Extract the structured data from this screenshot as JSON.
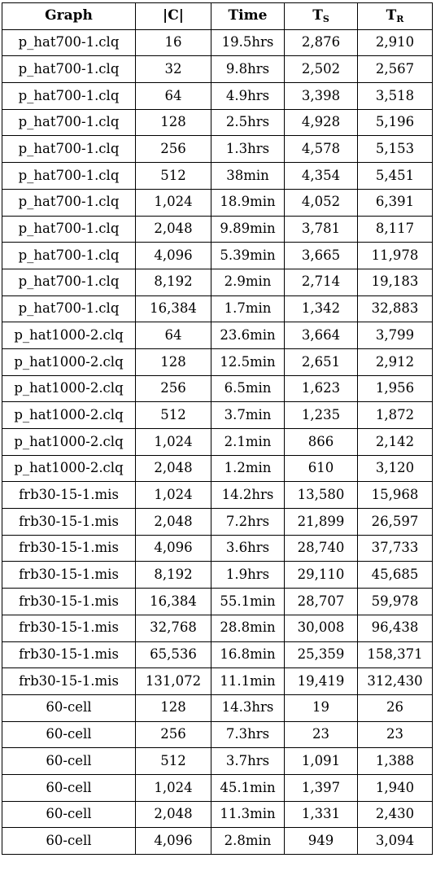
{
  "headers": {
    "graph": "Graph",
    "c": "|C|",
    "time": "Time",
    "ts_main": "T",
    "ts_sub": "S",
    "tr_main": "T",
    "tr_sub": "R"
  },
  "rows": [
    [
      "p_hat700-1.clq",
      "16",
      "19.5hrs",
      "2,876",
      "2,910"
    ],
    [
      "p_hat700-1.clq",
      "32",
      "9.8hrs",
      "2,502",
      "2,567"
    ],
    [
      "p_hat700-1.clq",
      "64",
      "4.9hrs",
      "3,398",
      "3,518"
    ],
    [
      "p_hat700-1.clq",
      "128",
      "2.5hrs",
      "4,928",
      "5,196"
    ],
    [
      "p_hat700-1.clq",
      "256",
      "1.3hrs",
      "4,578",
      "5,153"
    ],
    [
      "p_hat700-1.clq",
      "512",
      "38min",
      "4,354",
      "5,451"
    ],
    [
      "p_hat700-1.clq",
      "1,024",
      "18.9min",
      "4,052",
      "6,391"
    ],
    [
      "p_hat700-1.clq",
      "2,048",
      "9.89min",
      "3,781",
      "8,117"
    ],
    [
      "p_hat700-1.clq",
      "4,096",
      "5.39min",
      "3,665",
      "11,978"
    ],
    [
      "p_hat700-1.clq",
      "8,192",
      "2.9min",
      "2,714",
      "19,183"
    ],
    [
      "p_hat700-1.clq",
      "16,384",
      "1.7min",
      "1,342",
      "32,883"
    ],
    [
      "p_hat1000-2.clq",
      "64",
      "23.6min",
      "3,664",
      "3,799"
    ],
    [
      "p_hat1000-2.clq",
      "128",
      "12.5min",
      "2,651",
      "2,912"
    ],
    [
      "p_hat1000-2.clq",
      "256",
      "6.5min",
      "1,623",
      "1,956"
    ],
    [
      "p_hat1000-2.clq",
      "512",
      "3.7min",
      "1,235",
      "1,872"
    ],
    [
      "p_hat1000-2.clq",
      "1,024",
      "2.1min",
      "866",
      "2,142"
    ],
    [
      "p_hat1000-2.clq",
      "2,048",
      "1.2min",
      "610",
      "3,120"
    ],
    [
      "frb30-15-1.mis",
      "1,024",
      "14.2hrs",
      "13,580",
      "15,968"
    ],
    [
      "frb30-15-1.mis",
      "2,048",
      "7.2hrs",
      "21,899",
      "26,597"
    ],
    [
      "frb30-15-1.mis",
      "4,096",
      "3.6hrs",
      "28,740",
      "37,733"
    ],
    [
      "frb30-15-1.mis",
      "8,192",
      "1.9hrs",
      "29,110",
      "45,685"
    ],
    [
      "frb30-15-1.mis",
      "16,384",
      "55.1min",
      "28,707",
      "59,978"
    ],
    [
      "frb30-15-1.mis",
      "32,768",
      "28.8min",
      "30,008",
      "96,438"
    ],
    [
      "frb30-15-1.mis",
      "65,536",
      "16.8min",
      "25,359",
      "158,371"
    ],
    [
      "frb30-15-1.mis",
      "131,072",
      "11.1min",
      "19,419",
      "312,430"
    ],
    [
      "60-cell",
      "128",
      "14.3hrs",
      "19",
      "26"
    ],
    [
      "60-cell",
      "256",
      "7.3hrs",
      "23",
      "23"
    ],
    [
      "60-cell",
      "512",
      "3.7hrs",
      "1,091",
      "1,388"
    ],
    [
      "60-cell",
      "1,024",
      "45.1min",
      "1,397",
      "1,940"
    ],
    [
      "60-cell",
      "2,048",
      "11.3min",
      "1,331",
      "2,430"
    ],
    [
      "60-cell",
      "4,096",
      "2.8min",
      "949",
      "3,094"
    ]
  ]
}
